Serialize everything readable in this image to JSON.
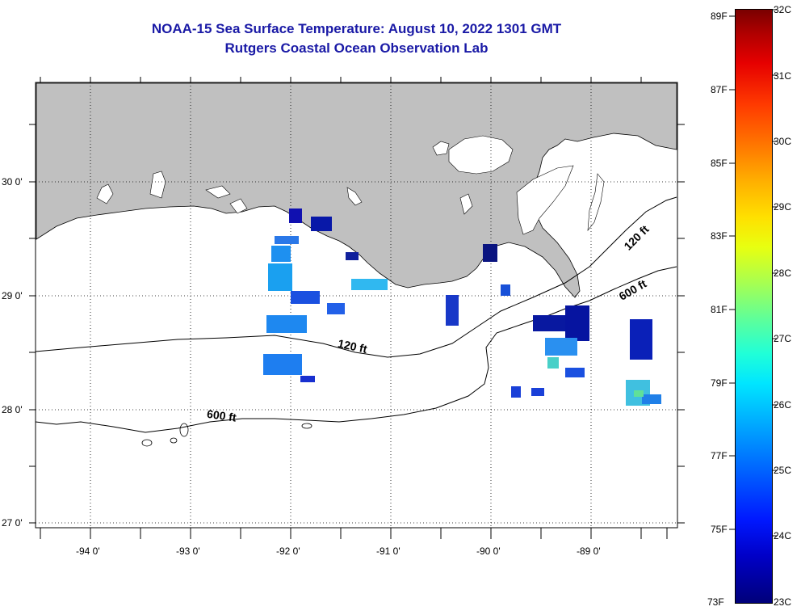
{
  "title": {
    "line1": "NOAA-15 Sea Surface Temperature:  August 10, 2022 1301 GMT",
    "line2": "Rutgers Coastal Ocean Observation Lab"
  },
  "map": {
    "lat_labels": [
      "30 0'",
      "29 0'",
      "28 0'",
      "27 0'"
    ],
    "lon_labels": [
      "-94 0'",
      "-93 0'",
      "-92 0'",
      "-91 0'",
      "-90 0'",
      "-89 0'"
    ],
    "contour_labels": [
      "120 ft",
      "600 ft",
      "120 ft",
      "600 ft"
    ],
    "colors": {
      "land": "#c0c0c0",
      "water": "#ffffff",
      "coast": "#000000"
    }
  },
  "colorbar": {
    "fahrenheit": [
      "89F",
      "87F",
      "85F",
      "83F",
      "81F",
      "79F",
      "77F",
      "75F",
      "73F"
    ],
    "celsius": [
      "32C",
      "31C",
      "30C",
      "29C",
      "28C",
      "27C",
      "26C",
      "25C",
      "24C",
      "23C"
    ],
    "range_c": [
      23,
      32
    ]
  }
}
